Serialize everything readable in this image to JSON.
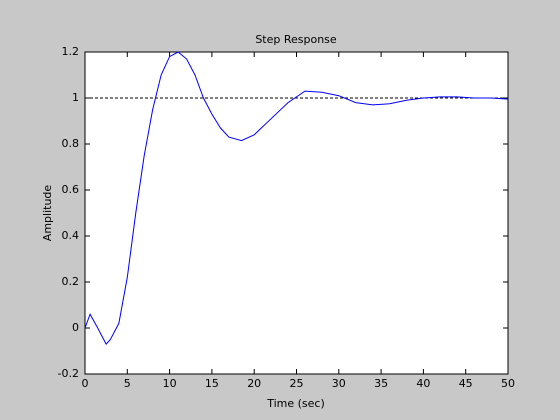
{
  "chart_data": {
    "type": "line",
    "title": "Step Response",
    "xlabel": "Time (sec)",
    "ylabel": "Amplitude",
    "x": [
      0,
      0.6,
      1.5,
      2.5,
      3,
      4,
      5,
      6,
      7,
      8,
      9,
      10,
      11,
      12,
      13,
      14,
      15,
      16,
      17,
      18.5,
      20,
      22,
      24,
      26,
      28,
      30,
      32,
      34,
      36,
      38,
      40,
      42,
      44,
      46,
      48,
      50
    ],
    "series": [
      {
        "color": "#0000ff",
        "values": [
          0,
          0.06,
          0.0,
          -0.07,
          -0.05,
          0.02,
          0.22,
          0.5,
          0.75,
          0.95,
          1.1,
          1.18,
          1.2,
          1.17,
          1.1,
          1.0,
          0.93,
          0.87,
          0.83,
          0.815,
          0.84,
          0.91,
          0.98,
          1.03,
          1.025,
          1.01,
          0.98,
          0.97,
          0.975,
          0.99,
          1.0,
          1.005,
          1.005,
          1.0,
          1.0,
          0.995
        ]
      }
    ],
    "reference_line": 1,
    "xlim": [
      0,
      50
    ],
    "xticks": [
      0,
      5,
      10,
      15,
      20,
      25,
      30,
      35,
      40,
      45,
      50
    ],
    "ylim": [
      -0.2,
      1.2
    ],
    "yticks": [
      -0.2,
      0,
      0.2,
      0.4,
      0.6,
      0.8,
      1,
      1.2
    ]
  }
}
